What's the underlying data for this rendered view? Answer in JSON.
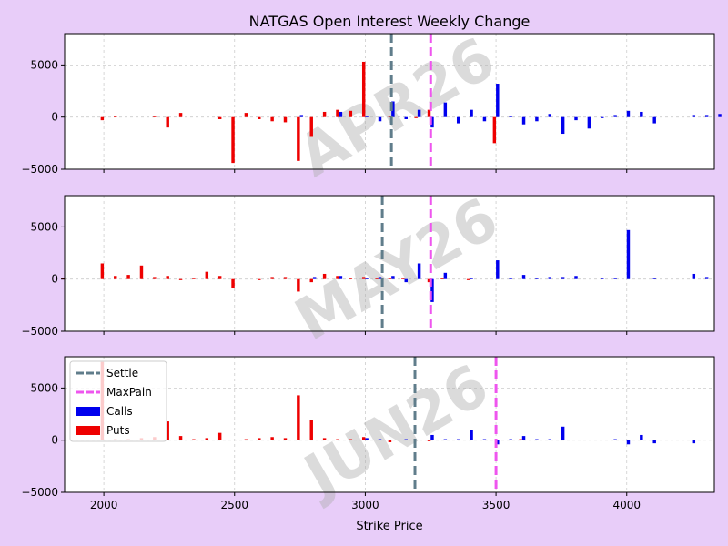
{
  "chart_data": {
    "type": "bar",
    "title": "NATGAS Open Interest Weekly Change",
    "xlabel": "Strike Price",
    "ylabel": "",
    "xlim": [
      1850,
      4335
    ],
    "ylim": [
      -5000,
      8000
    ],
    "xticks": [
      2000,
      2500,
      3000,
      3500,
      4000
    ],
    "yticks": [
      -5000,
      0,
      5000
    ],
    "bar_width": 12,
    "grid": true,
    "legend": {
      "placement": "top-left",
      "entries": [
        "Settle",
        "MaxPain",
        "Calls",
        "Puts"
      ]
    },
    "colors": {
      "calls": "#0000ee",
      "puts": "#ee0000",
      "settle": "#607d8b",
      "maxpain": "#ee55ee",
      "background": "#e8cdf9",
      "watermark": "#b0b0b0"
    },
    "panels": [
      {
        "watermark": "APR26",
        "settle": 3100,
        "maxpain": 3250,
        "calls": {
          "x": [
            2750,
            2900,
            3000,
            3050,
            3100,
            3150,
            3200,
            3250,
            3300,
            3350,
            3400,
            3450,
            3500,
            3550,
            3600,
            3650,
            3700,
            3750,
            3800,
            3850,
            3900,
            3950,
            4000,
            4050,
            4100,
            4250,
            4300,
            4350
          ],
          "values": [
            200,
            500,
            100,
            -400,
            1500,
            -200,
            700,
            -1000,
            1400,
            -600,
            700,
            -400,
            3200,
            100,
            -700,
            -400,
            300,
            -1600,
            -300,
            -1100,
            -100,
            200,
            600,
            500,
            -600,
            200,
            200,
            300
          ]
        },
        "puts": {
          "x": [
            2000,
            2050,
            2200,
            2250,
            2300,
            2450,
            2500,
            2550,
            2600,
            2650,
            2700,
            2750,
            2800,
            2850,
            2900,
            2950,
            3000,
            3100,
            3200,
            3250,
            3500
          ],
          "values": [
            -300,
            100,
            100,
            -1000,
            400,
            -200,
            -4400,
            400,
            -200,
            -400,
            -500,
            -4200,
            -1900,
            500,
            700,
            600,
            5300,
            100,
            -100,
            700,
            -2500
          ]
        }
      },
      {
        "watermark": "MAY26",
        "settle": 3065,
        "maxpain": 3250,
        "calls": {
          "x": [
            2800,
            2900,
            3000,
            3050,
            3100,
            3150,
            3200,
            3250,
            3300,
            3400,
            3500,
            3550,
            3600,
            3650,
            3700,
            3750,
            3800,
            3900,
            3950,
            4000,
            4100,
            4250,
            4300
          ],
          "values": [
            200,
            300,
            100,
            200,
            300,
            -300,
            1500,
            -2200,
            600,
            100,
            1800,
            100,
            400,
            100,
            200,
            200,
            300,
            100,
            100,
            4700,
            100,
            500,
            200
          ]
        },
        "puts": {
          "x": [
            1850,
            2000,
            2050,
            2100,
            2150,
            2200,
            2250,
            2300,
            2350,
            2400,
            2450,
            2500,
            2600,
            2650,
            2700,
            2750,
            2800,
            2850,
            2900,
            2950,
            3000,
            3050,
            3100,
            3150,
            3250,
            3300,
            3400
          ],
          "values": [
            100,
            1500,
            300,
            400,
            1300,
            200,
            300,
            -100,
            100,
            700,
            300,
            -900,
            -100,
            200,
            200,
            -1200,
            -300,
            500,
            300,
            100,
            200,
            100,
            100,
            100,
            -300,
            100,
            -100
          ]
        }
      },
      {
        "watermark": "JUN26",
        "settle": 3190,
        "maxpain": 3500,
        "calls": {
          "x": [
            3000,
            3050,
            3150,
            3250,
            3300,
            3350,
            3400,
            3450,
            3500,
            3550,
            3600,
            3650,
            3700,
            3750,
            3950,
            4000,
            4050,
            4100,
            4250
          ],
          "values": [
            200,
            100,
            100,
            500,
            100,
            100,
            1000,
            100,
            -400,
            100,
            400,
            100,
            100,
            1300,
            100,
            -400,
            500,
            -300,
            -300
          ]
        },
        "puts": {
          "x": [
            2000,
            2050,
            2100,
            2150,
            2200,
            2250,
            2300,
            2350,
            2400,
            2450,
            2550,
            2600,
            2650,
            2700,
            2750,
            2800,
            2850,
            2900,
            2950,
            3000,
            3100,
            3250,
            3600
          ],
          "values": [
            7500,
            100,
            100,
            200,
            300,
            1800,
            400,
            100,
            200,
            700,
            100,
            200,
            300,
            200,
            4300,
            1900,
            200,
            100,
            100,
            300,
            -200,
            -100,
            100
          ]
        }
      }
    ]
  }
}
